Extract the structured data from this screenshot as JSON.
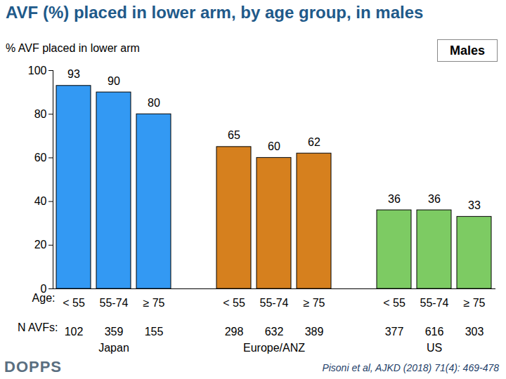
{
  "chart_data": {
    "type": "bar",
    "title": "AVF (%) placed in lower arm, by age group, in males",
    "y_label": "% AVF placed in lower arm",
    "panel_label": "Males",
    "x_label": "Age:",
    "n_label": "N AVFs:",
    "groups": [
      {
        "name": "Japan",
        "color": "#3399f3",
        "categories": [
          "< 55",
          "55-74",
          "≥ 75"
        ],
        "values": [
          93,
          90,
          80
        ],
        "n_avfs": [
          102,
          359,
          155
        ]
      },
      {
        "name": "Europe/ANZ",
        "color": "#d6801e",
        "categories": [
          "< 55",
          "55-74",
          "≥ 75"
        ],
        "values": [
          65,
          60,
          62
        ],
        "n_avfs": [
          298,
          632,
          389
        ]
      },
      {
        "name": "US",
        "color": "#7dcb63",
        "categories": [
          "< 55",
          "55-74",
          "≥ 75"
        ],
        "values": [
          36,
          36,
          33
        ],
        "n_avfs": [
          377,
          616,
          303
        ]
      }
    ],
    "ylim": [
      0,
      100
    ],
    "yticks": [
      0,
      20,
      40,
      60,
      80,
      100
    ],
    "grid": false,
    "data_labels": true,
    "logo": "DOPPS",
    "source": "Pisoni et al, AJKD (2018) 71(4): 469-478"
  }
}
